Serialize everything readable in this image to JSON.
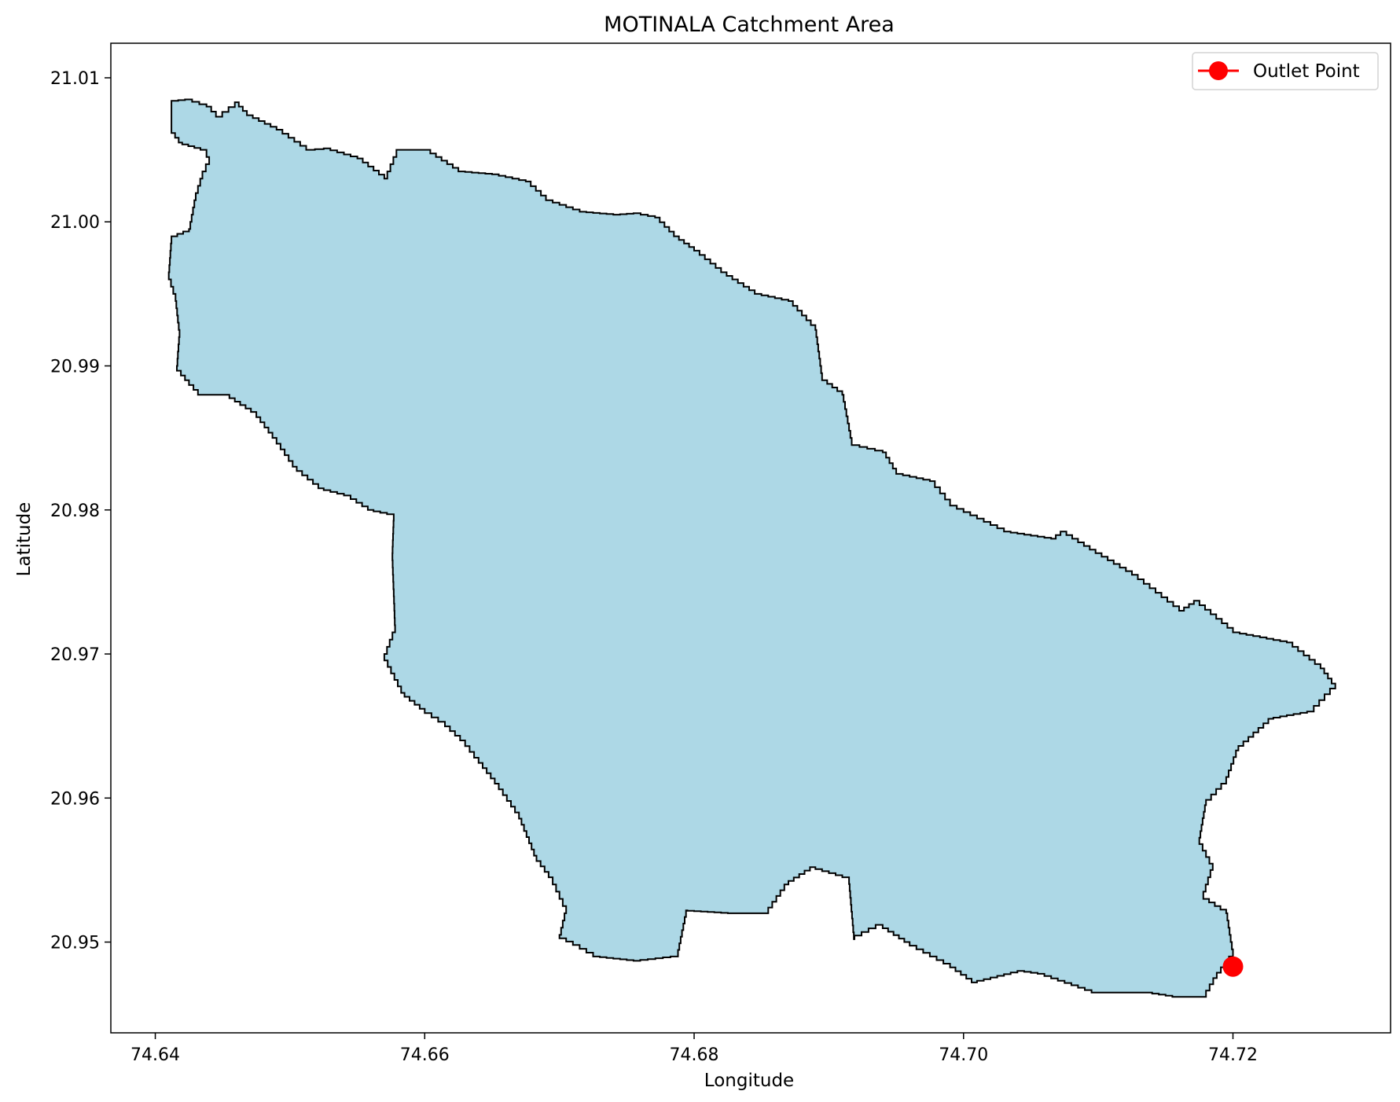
{
  "chart_data": {
    "type": "map",
    "title": "MOTINALA Catchment Area",
    "xlabel": "Longitude",
    "ylabel": "Latitude",
    "xlim": [
      74.6367,
      74.7317
    ],
    "ylim": [
      20.9437,
      21.0124
    ],
    "x_ticks": [
      74.64,
      74.66,
      74.68,
      74.7,
      74.72
    ],
    "x_tick_labels": [
      "74.64",
      "74.66",
      "74.68",
      "74.70",
      "74.72"
    ],
    "y_ticks": [
      20.95,
      20.96,
      20.97,
      20.98,
      20.99,
      21.0,
      21.01
    ],
    "y_tick_labels": [
      "20.95",
      "20.96",
      "20.97",
      "20.98",
      "20.99",
      "21.00",
      "21.01"
    ],
    "grid": false,
    "legend": {
      "position": "top-right",
      "entries": [
        {
          "label": "Outlet Point",
          "color": "#ff0000",
          "marker": "circle"
        }
      ]
    },
    "catchment": {
      "fill": "#add8e6",
      "edge": "#000000",
      "boundary": [
        [
          74.6412,
          21.0084
        ],
        [
          74.6422,
          21.0085
        ],
        [
          74.6438,
          21.008
        ],
        [
          74.6445,
          21.0073
        ],
        [
          74.6459,
          21.0083
        ],
        [
          74.6468,
          21.0074
        ],
        [
          74.649,
          21.0064
        ],
        [
          74.6512,
          21.005
        ],
        [
          74.6525,
          21.0051
        ],
        [
          74.655,
          21.0044
        ],
        [
          74.657,
          21.003
        ],
        [
          74.6579,
          21.005
        ],
        [
          74.66,
          21.005
        ],
        [
          74.6625,
          21.0035
        ],
        [
          74.665,
          21.0033
        ],
        [
          74.6675,
          21.0028
        ],
        [
          74.669,
          21.0015
        ],
        [
          74.6715,
          21.0007
        ],
        [
          74.674,
          21.0005
        ],
        [
          74.6755,
          21.0006
        ],
        [
          74.6771,
          21.0003
        ],
        [
          74.6785,
          20.999
        ],
        [
          74.68,
          20.998
        ],
        [
          74.682,
          20.9965
        ],
        [
          74.6845,
          20.995
        ],
        [
          74.687,
          20.9945
        ],
        [
          74.689,
          20.9925
        ],
        [
          74.6895,
          20.989
        ],
        [
          74.691,
          20.988
        ],
        [
          74.6917,
          20.9845
        ],
        [
          74.694,
          20.984
        ],
        [
          74.695,
          20.9825
        ],
        [
          74.6975,
          20.982
        ],
        [
          74.699,
          20.9803
        ],
        [
          74.703,
          20.9785
        ],
        [
          74.7065,
          20.978
        ],
        [
          74.7072,
          20.9785
        ],
        [
          74.7098,
          20.977
        ],
        [
          74.7125,
          20.9755
        ],
        [
          74.716,
          20.973
        ],
        [
          74.7171,
          20.9737
        ],
        [
          74.72,
          20.9715
        ],
        [
          74.724,
          20.9708
        ],
        [
          74.7265,
          20.969
        ],
        [
          74.7276,
          20.9676
        ],
        [
          74.726,
          20.966
        ],
        [
          74.723,
          20.9655
        ],
        [
          74.7204,
          20.9633
        ],
        [
          74.7195,
          20.961
        ],
        [
          74.718,
          20.9595
        ],
        [
          74.7175,
          20.9568
        ],
        [
          74.7185,
          20.955
        ],
        [
          74.7178,
          20.953
        ],
        [
          74.7195,
          20.952
        ],
        [
          74.72,
          20.949
        ],
        [
          74.7188,
          20.9475
        ],
        [
          74.718,
          20.9462
        ],
        [
          74.716,
          20.9462
        ],
        [
          74.714,
          20.9465
        ],
        [
          74.71,
          20.9465
        ],
        [
          74.7085,
          20.947
        ],
        [
          74.706,
          20.9478
        ],
        [
          74.7045,
          20.948
        ],
        [
          74.701,
          20.9472
        ],
        [
          74.699,
          20.9485
        ],
        [
          74.696,
          20.95
        ],
        [
          74.694,
          20.9512
        ],
        [
          74.6919,
          20.9502
        ],
        [
          74.6915,
          20.9545
        ],
        [
          74.689,
          20.9552
        ],
        [
          74.687,
          20.954
        ],
        [
          74.6855,
          20.952
        ],
        [
          74.683,
          20.952
        ],
        [
          74.6795,
          20.9522
        ],
        [
          74.6788,
          20.949
        ],
        [
          74.676,
          20.9487
        ],
        [
          74.673,
          20.949
        ],
        [
          74.6715,
          20.9498
        ],
        [
          74.67,
          20.9505
        ],
        [
          74.6705,
          20.9525
        ],
        [
          74.6695,
          20.9545
        ],
        [
          74.6683,
          20.956
        ],
        [
          74.667,
          20.959
        ],
        [
          74.6655,
          20.961
        ],
        [
          74.664,
          20.9628
        ],
        [
          74.663,
          20.964
        ],
        [
          74.6615,
          20.9653
        ],
        [
          74.66,
          20.9662
        ],
        [
          74.6585,
          20.9673
        ],
        [
          74.657,
          20.97
        ],
        [
          74.6578,
          20.972
        ],
        [
          74.6576,
          20.977
        ],
        [
          74.6577,
          20.9797
        ],
        [
          74.6562,
          20.98
        ],
        [
          74.6545,
          20.981
        ],
        [
          74.6525,
          20.9815
        ],
        [
          74.6505,
          20.983
        ],
        [
          74.649,
          20.985
        ],
        [
          74.6475,
          20.9868
        ],
        [
          74.6455,
          20.988
        ],
        [
          74.6435,
          20.988
        ],
        [
          74.6425,
          20.989
        ],
        [
          74.6416,
          20.99
        ],
        [
          74.6418,
          20.9925
        ],
        [
          74.6415,
          20.995
        ],
        [
          74.641,
          20.9965
        ],
        [
          74.6412,
          20.999
        ],
        [
          74.6425,
          20.9995
        ],
        [
          74.643,
          21.002
        ],
        [
          74.6435,
          21.0035
        ],
        [
          74.644,
          21.0045
        ],
        [
          74.6438,
          21.005
        ],
        [
          74.642,
          21.0055
        ],
        [
          74.6412,
          21.0065
        ],
        [
          74.6412,
          21.0084
        ]
      ]
    },
    "outlet_point": {
      "label": "Outlet Point",
      "lon": 74.72,
      "lat": 20.9483,
      "color": "#ff0000"
    }
  }
}
